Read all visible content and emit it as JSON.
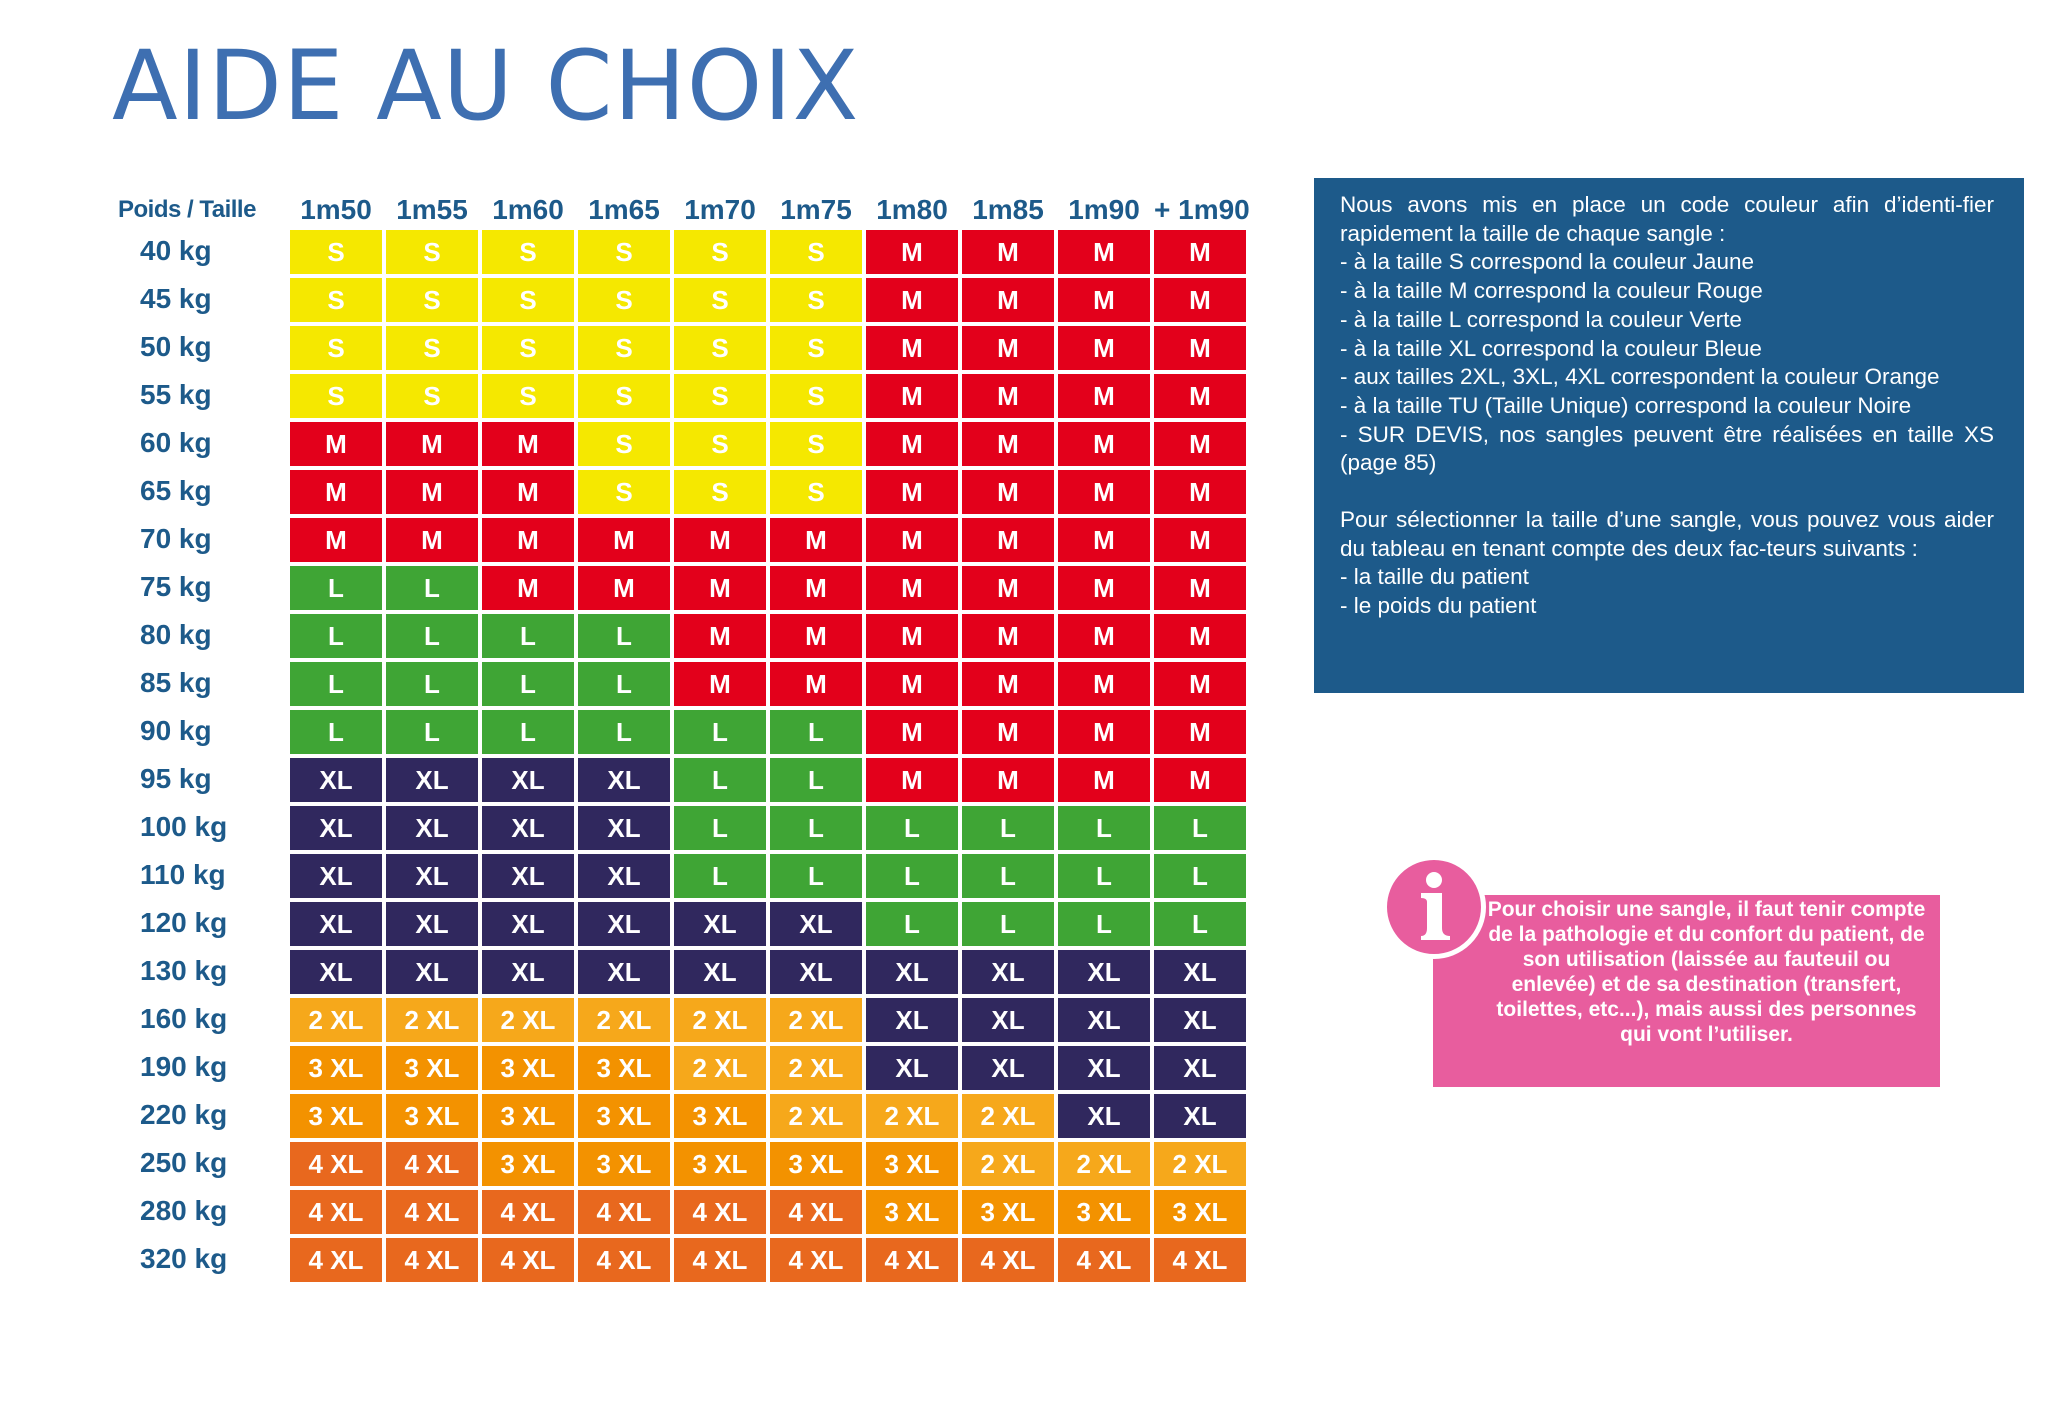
{
  "title": "AIDE AU CHOIX",
  "table": {
    "corner_label": "Poids / Taille",
    "heights": [
      "1m50",
      "1m55",
      "1m60",
      "1m65",
      "1m70",
      "1m75",
      "1m80",
      "1m85",
      "1m90",
      "+ 1m90"
    ],
    "colors": {
      "S": "#f5e800",
      "M": "#e3001b",
      "L": "#3fa535",
      "XL": "#30285e",
      "2 XL": "#f6a81b",
      "3 XL": "#f39200",
      "4 XL": "#e8681e"
    },
    "rows": [
      {
        "weight": "40 kg",
        "sizes": [
          "S",
          "S",
          "S",
          "S",
          "S",
          "S",
          "M",
          "M",
          "M",
          "M"
        ]
      },
      {
        "weight": "45 kg",
        "sizes": [
          "S",
          "S",
          "S",
          "S",
          "S",
          "S",
          "M",
          "M",
          "M",
          "M"
        ]
      },
      {
        "weight": "50 kg",
        "sizes": [
          "S",
          "S",
          "S",
          "S",
          "S",
          "S",
          "M",
          "M",
          "M",
          "M"
        ]
      },
      {
        "weight": "55 kg",
        "sizes": [
          "S",
          "S",
          "S",
          "S",
          "S",
          "S",
          "M",
          "M",
          "M",
          "M"
        ]
      },
      {
        "weight": "60 kg",
        "sizes": [
          "M",
          "M",
          "M",
          "S",
          "S",
          "S",
          "M",
          "M",
          "M",
          "M"
        ]
      },
      {
        "weight": "65 kg",
        "sizes": [
          "M",
          "M",
          "M",
          "S",
          "S",
          "S",
          "M",
          "M",
          "M",
          "M"
        ]
      },
      {
        "weight": "70 kg",
        "sizes": [
          "M",
          "M",
          "M",
          "M",
          "M",
          "M",
          "M",
          "M",
          "M",
          "M"
        ]
      },
      {
        "weight": "75 kg",
        "sizes": [
          "L",
          "L",
          "M",
          "M",
          "M",
          "M",
          "M",
          "M",
          "M",
          "M"
        ]
      },
      {
        "weight": "80 kg",
        "sizes": [
          "L",
          "L",
          "L",
          "L",
          "M",
          "M",
          "M",
          "M",
          "M",
          "M"
        ]
      },
      {
        "weight": "85 kg",
        "sizes": [
          "L",
          "L",
          "L",
          "L",
          "M",
          "M",
          "M",
          "M",
          "M",
          "M"
        ]
      },
      {
        "weight": "90 kg",
        "sizes": [
          "L",
          "L",
          "L",
          "L",
          "L",
          "L",
          "M",
          "M",
          "M",
          "M"
        ]
      },
      {
        "weight": "95 kg",
        "sizes": [
          "XL",
          "XL",
          "XL",
          "XL",
          "L",
          "L",
          "M",
          "M",
          "M",
          "M"
        ]
      },
      {
        "weight": "100 kg",
        "sizes": [
          "XL",
          "XL",
          "XL",
          "XL",
          "L",
          "L",
          "L",
          "L",
          "L",
          "L"
        ]
      },
      {
        "weight": "110 kg",
        "sizes": [
          "XL",
          "XL",
          "XL",
          "XL",
          "L",
          "L",
          "L",
          "L",
          "L",
          "L"
        ]
      },
      {
        "weight": "120 kg",
        "sizes": [
          "XL",
          "XL",
          "XL",
          "XL",
          "XL",
          "XL",
          "L",
          "L",
          "L",
          "L"
        ]
      },
      {
        "weight": "130 kg",
        "sizes": [
          "XL",
          "XL",
          "XL",
          "XL",
          "XL",
          "XL",
          "XL",
          "XL",
          "XL",
          "XL"
        ]
      },
      {
        "weight": "160 kg",
        "sizes": [
          "2 XL",
          "2 XL",
          "2 XL",
          "2 XL",
          "2 XL",
          "2 XL",
          "XL",
          "XL",
          "XL",
          "XL"
        ]
      },
      {
        "weight": "190 kg",
        "sizes": [
          "3 XL",
          "3 XL",
          "3 XL",
          "3 XL",
          "2 XL",
          "2 XL",
          "XL",
          "XL",
          "XL",
          "XL"
        ]
      },
      {
        "weight": "220 kg",
        "sizes": [
          "3 XL",
          "3 XL",
          "3 XL",
          "3 XL",
          "3 XL",
          "2 XL",
          "2 XL",
          "2 XL",
          "XL",
          "XL"
        ]
      },
      {
        "weight": "250 kg",
        "sizes": [
          "4 XL",
          "4 XL",
          "3 XL",
          "3 XL",
          "3 XL",
          "3 XL",
          "3 XL",
          "2 XL",
          "2 XL",
          "2 XL"
        ]
      },
      {
        "weight": "280 kg",
        "sizes": [
          "4 XL",
          "4 XL",
          "4 XL",
          "4 XL",
          "4 XL",
          "4 XL",
          "3 XL",
          "3 XL",
          "3 XL",
          "3 XL"
        ]
      },
      {
        "weight": "320 kg",
        "sizes": [
          "4 XL",
          "4 XL",
          "4 XL",
          "4 XL",
          "4 XL",
          "4 XL",
          "4 XL",
          "4 XL",
          "4 XL",
          "4 XL"
        ]
      }
    ]
  },
  "info_box": {
    "color": "#1d5a8a",
    "paragraph1": [
      "Nous avons mis en place un code couleur afin d’identi-fier rapidement la taille de chaque sangle :",
      "- à la taille S correspond la couleur Jaune",
      "- à la taille M correspond la couleur Rouge",
      "- à la taille L correspond la couleur Verte",
      "- à la taille XL correspond la couleur Bleue",
      "- aux tailles 2XL, 3XL, 4XL correspondent la couleur Orange",
      "- à la taille TU (Taille Unique) correspond la couleur Noire",
      "- SUR DEVIS, nos sangles peuvent être réalisées en taille XS (page 85)"
    ],
    "paragraph2": [
      "Pour sélectionner la taille d’une sangle, vous pouvez vous aider du tableau en tenant compte des deux fac-teurs suivants :",
      "- la taille du patient",
      "- le poids du patient"
    ]
  },
  "note_box": {
    "color": "#e85d9e",
    "icon": "info-icon",
    "text": "Pour choisir une sangle, il faut tenir compte de la pathologie et du confort du patient, de son utilisation (laissée au fauteuil ou enlevée) et de sa destination (transfert, toilettes, etc...), mais aussi des personnes qui vont l’utiliser."
  }
}
